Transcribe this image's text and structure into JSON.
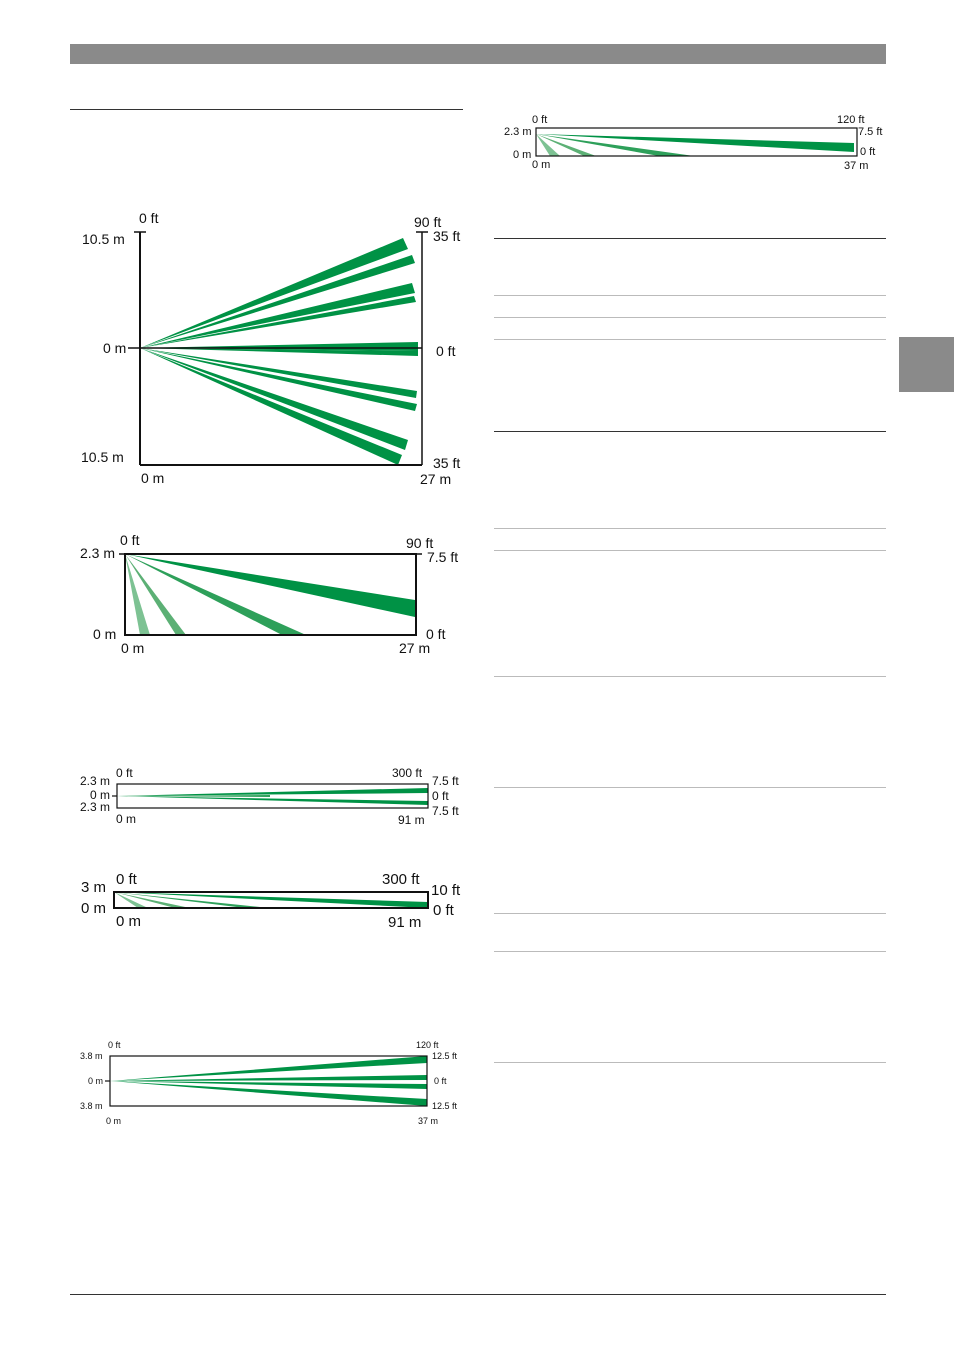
{
  "colors": {
    "header_bar": "#8a8a8a",
    "side_tab": "#8a8a8a",
    "beam_dark": "#009245",
    "beam_mid": "#2ea05a",
    "beam_light": "#7dc293",
    "frame": "#111111",
    "rule_dark": "#333333",
    "rule_light": "#bbbbbb"
  },
  "diagrams": [
    {
      "id": "d1",
      "view": "top",
      "labels": {
        "tl_top": "0 ft",
        "tr_top": "90 ft",
        "tr_right": "35 ft",
        "left_top": "10.5 m",
        "left_mid": "0 m",
        "right_mid": "0 ft",
        "left_bot": "10.5 m",
        "right_bot": "35 ft",
        "bottom_left": "0 m",
        "bottom_right": "27 m"
      },
      "range": {
        "distance_m": 27,
        "distance_ft": 90,
        "half_width_m": 10.5,
        "half_width_ft": 35
      }
    },
    {
      "id": "d2",
      "view": "side",
      "labels": {
        "tl_top": "0 ft",
        "tr_top": "90 ft",
        "left_top": "2.3 m",
        "right_top": "7.5 ft",
        "left_bot": "0 m",
        "right_bot": "0 ft",
        "bottom_left": "0 m",
        "bottom_right": "27 m"
      },
      "range": {
        "distance_m": 27,
        "distance_ft": 90,
        "height_m": 2.3,
        "height_ft": 7.5
      }
    },
    {
      "id": "d3",
      "view": "top",
      "labels": {
        "tl_top": "0 ft",
        "tr_top": "300 ft",
        "left_top": "2.3 m",
        "right_top": "7.5 ft",
        "left_mid": "0 m",
        "right_mid": "0 ft",
        "left_bot": "2.3 m",
        "right_bot": "7.5 ft",
        "bottom_left": "0 m",
        "bottom_right": "91 m"
      },
      "range": {
        "distance_m": 91,
        "distance_ft": 300,
        "half_width_m": 2.3,
        "half_width_ft": 7.5
      }
    },
    {
      "id": "d4",
      "view": "side",
      "labels": {
        "left_top": "3 m",
        "tl_top": "0 ft",
        "tr_top": "300 ft",
        "right_top": "10 ft",
        "left_bot": "0 m",
        "right_bot": "0 ft",
        "bottom_left": "0 m",
        "bottom_right": "91 m"
      },
      "range": {
        "distance_m": 91,
        "distance_ft": 300,
        "height_m": 3,
        "height_ft": 10
      }
    },
    {
      "id": "d5",
      "view": "top",
      "labels": {
        "tl_top": "0 ft",
        "tr_top": "120 ft",
        "left_top": "3.8 m",
        "right_top": "12.5 ft",
        "left_mid": "0 m",
        "right_mid": "0 ft",
        "left_bot": "3.8 m",
        "right_bot": "12.5 ft",
        "bottom_left": "0 m",
        "bottom_right": "37 m"
      },
      "range": {
        "distance_m": 37,
        "distance_ft": 120,
        "half_width_m": 3.8,
        "half_width_ft": 12.5
      }
    },
    {
      "id": "d6",
      "view": "side",
      "labels": {
        "tl_top": "0 ft",
        "tr_top": "120 ft",
        "left_top": "2.3 m",
        "right_top": "7.5 ft",
        "left_bot": "0 m",
        "right_bot": "0 ft",
        "bottom_left": "0 m",
        "bottom_right": "37 m"
      },
      "range": {
        "distance_m": 37,
        "distance_ft": 120,
        "height_m": 2.3,
        "height_ft": 7.5
      }
    }
  ]
}
